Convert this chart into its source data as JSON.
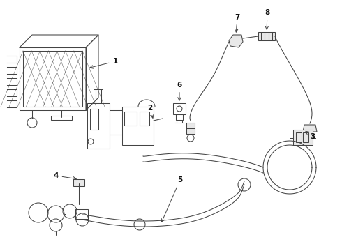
{
  "bg_color": "#ffffff",
  "line_color": "#444444",
  "label_color": "#111111",
  "figsize": [
    4.9,
    3.6
  ],
  "dpi": 100,
  "lw": 0.75
}
